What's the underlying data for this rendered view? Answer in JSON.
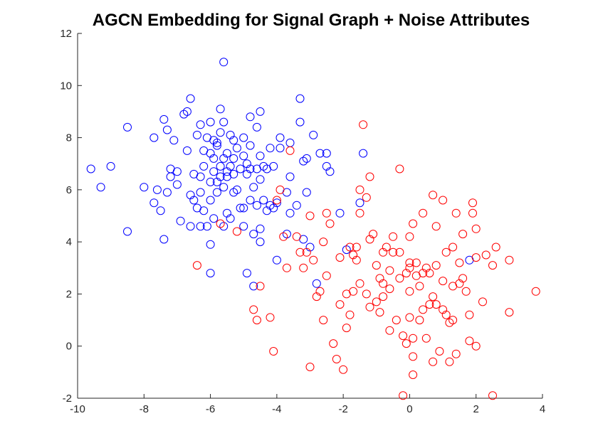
{
  "chart_data": {
    "type": "scatter",
    "title": "AGCN Embedding for Signal Graph + Noise Attributes",
    "xlabel": "",
    "ylabel": "",
    "xlim": [
      -10,
      4
    ],
    "ylim": [
      -2,
      12
    ],
    "xticks": [
      -10,
      -8,
      -6,
      -4,
      -2,
      0,
      2,
      4
    ],
    "yticks": [
      -2,
      0,
      2,
      4,
      6,
      8,
      10,
      12
    ],
    "grid": false,
    "legend": "none",
    "marker": "open-circle",
    "series": [
      {
        "color": "#0000ff",
        "points": [
          [
            -9.6,
            6.8
          ],
          [
            -9.3,
            6.1
          ],
          [
            -9.0,
            6.9
          ],
          [
            -8.5,
            8.4
          ],
          [
            -8.5,
            4.4
          ],
          [
            -8.0,
            6.1
          ],
          [
            -7.7,
            5.5
          ],
          [
            -7.7,
            8.0
          ],
          [
            -7.6,
            6.0
          ],
          [
            -7.5,
            5.2
          ],
          [
            -7.4,
            8.7
          ],
          [
            -7.4,
            4.1
          ],
          [
            -7.3,
            5.9
          ],
          [
            -7.3,
            8.3
          ],
          [
            -7.2,
            6.5
          ],
          [
            -7.2,
            6.8
          ],
          [
            -7.1,
            7.9
          ],
          [
            -7.0,
            6.2
          ],
          [
            -7.0,
            6.7
          ],
          [
            -6.9,
            4.8
          ],
          [
            -6.8,
            8.9
          ],
          [
            -6.7,
            9.0
          ],
          [
            -6.7,
            7.5
          ],
          [
            -6.6,
            5.8
          ],
          [
            -6.6,
            4.6
          ],
          [
            -6.6,
            9.5
          ],
          [
            -6.5,
            6.6
          ],
          [
            -6.5,
            5.6
          ],
          [
            -6.4,
            8.1
          ],
          [
            -6.4,
            5.3
          ],
          [
            -6.3,
            8.5
          ],
          [
            -6.3,
            6.5
          ],
          [
            -6.3,
            4.6
          ],
          [
            -6.3,
            5.9
          ],
          [
            -6.2,
            6.9
          ],
          [
            -6.2,
            5.2
          ],
          [
            -6.2,
            7.5
          ],
          [
            -6.1,
            8.0
          ],
          [
            -6.1,
            4.6
          ],
          [
            -6.0,
            7.4
          ],
          [
            -6.0,
            6.3
          ],
          [
            -6.0,
            5.6
          ],
          [
            -6.0,
            8.6
          ],
          [
            -6.0,
            3.9
          ],
          [
            -6.0,
            2.8
          ],
          [
            -5.9,
            6.7
          ],
          [
            -5.9,
            7.2
          ],
          [
            -5.9,
            4.9
          ],
          [
            -5.9,
            7.9
          ],
          [
            -5.8,
            6.3
          ],
          [
            -5.8,
            5.9
          ],
          [
            -5.8,
            7.7
          ],
          [
            -5.8,
            7.8
          ],
          [
            -5.7,
            6.5
          ],
          [
            -5.7,
            9.1
          ],
          [
            -5.7,
            8.2
          ],
          [
            -5.7,
            6.9
          ],
          [
            -5.6,
            8.6
          ],
          [
            -5.6,
            7.2
          ],
          [
            -5.6,
            6.1
          ],
          [
            -5.6,
            4.6
          ],
          [
            -5.6,
            10.9
          ],
          [
            -5.5,
            7.4
          ],
          [
            -5.5,
            6.5
          ],
          [
            -5.5,
            5.1
          ],
          [
            -5.5,
            6.7
          ],
          [
            -5.4,
            8.1
          ],
          [
            -5.4,
            6.9
          ],
          [
            -5.4,
            4.9
          ],
          [
            -5.3,
            7.2
          ],
          [
            -5.3,
            5.9
          ],
          [
            -5.3,
            6.6
          ],
          [
            -5.3,
            7.9
          ],
          [
            -5.2,
            6.0
          ],
          [
            -5.2,
            7.6
          ],
          [
            -5.1,
            5.3
          ],
          [
            -5.1,
            6.8
          ],
          [
            -5.0,
            7.3
          ],
          [
            -5.0,
            4.6
          ],
          [
            -5.0,
            5.3
          ],
          [
            -5.0,
            8.0
          ],
          [
            -4.9,
            7.0
          ],
          [
            -4.9,
            6.6
          ],
          [
            -4.9,
            2.8
          ],
          [
            -4.8,
            6.8
          ],
          [
            -4.8,
            5.6
          ],
          [
            -4.8,
            7.7
          ],
          [
            -4.8,
            8.8
          ],
          [
            -4.7,
            6.1
          ],
          [
            -4.7,
            4.3
          ],
          [
            -4.7,
            2.3
          ],
          [
            -4.6,
            6.8
          ],
          [
            -4.6,
            5.4
          ],
          [
            -4.6,
            8.4
          ],
          [
            -4.5,
            4.5
          ],
          [
            -4.5,
            7.3
          ],
          [
            -4.5,
            9.0
          ],
          [
            -4.5,
            6.4
          ],
          [
            -4.5,
            4.0
          ],
          [
            -4.4,
            6.9
          ],
          [
            -4.4,
            5.6
          ],
          [
            -4.3,
            5.2
          ],
          [
            -4.3,
            6.8
          ],
          [
            -4.2,
            5.4
          ],
          [
            -4.2,
            7.6
          ],
          [
            -4.1,
            5.3
          ],
          [
            -4.1,
            6.9
          ],
          [
            -4.0,
            5.5
          ],
          [
            -4.0,
            3.3
          ],
          [
            -3.9,
            8.0
          ],
          [
            -3.9,
            7.6
          ],
          [
            -3.7,
            5.9
          ],
          [
            -3.7,
            4.3
          ],
          [
            -3.6,
            7.8
          ],
          [
            -3.6,
            5.1
          ],
          [
            -3.6,
            6.5
          ],
          [
            -3.4,
            5.4
          ],
          [
            -3.3,
            9.5
          ],
          [
            -3.3,
            8.6
          ],
          [
            -3.2,
            4.1
          ],
          [
            -3.2,
            7.1
          ],
          [
            -3.1,
            5.9
          ],
          [
            -3.1,
            7.2
          ],
          [
            -3.0,
            3.8
          ],
          [
            -2.9,
            8.1
          ],
          [
            -2.8,
            2.4
          ],
          [
            -2.7,
            7.4
          ],
          [
            -2.5,
            7.4
          ],
          [
            -2.5,
            6.9
          ],
          [
            -2.4,
            6.7
          ],
          [
            -2.1,
            5.1
          ],
          [
            -1.9,
            3.7
          ],
          [
            -1.5,
            5.5
          ],
          [
            -1.4,
            7.4
          ],
          [
            1.8,
            3.3
          ]
        ]
      },
      {
        "color": "#ff0000",
        "points": [
          [
            -6.4,
            3.1
          ],
          [
            -5.7,
            4.7
          ],
          [
            -5.2,
            4.4
          ],
          [
            -4.7,
            1.4
          ],
          [
            -4.6,
            1.0
          ],
          [
            -4.5,
            2.3
          ],
          [
            -4.2,
            1.1
          ],
          [
            -4.1,
            -0.2
          ],
          [
            -4.0,
            5.6
          ],
          [
            -3.9,
            6.0
          ],
          [
            -3.8,
            4.2
          ],
          [
            -3.7,
            3.0
          ],
          [
            -3.6,
            7.5
          ],
          [
            -3.4,
            4.2
          ],
          [
            -3.3,
            3.6
          ],
          [
            -3.2,
            3.0
          ],
          [
            -3.1,
            3.6
          ],
          [
            -3.0,
            5.0
          ],
          [
            -3.0,
            -0.8
          ],
          [
            -2.9,
            3.3
          ],
          [
            -2.8,
            1.9
          ],
          [
            -2.7,
            2.1
          ],
          [
            -2.6,
            4.0
          ],
          [
            -2.6,
            1.0
          ],
          [
            -2.5,
            5.1
          ],
          [
            -2.5,
            2.7
          ],
          [
            -2.4,
            4.7
          ],
          [
            -2.3,
            0.1
          ],
          [
            -2.2,
            -0.5
          ],
          [
            -2.1,
            1.6
          ],
          [
            -2.1,
            3.4
          ],
          [
            -2.0,
            -0.9
          ],
          [
            -1.9,
            0.7
          ],
          [
            -1.9,
            2.0
          ],
          [
            -1.8,
            3.8
          ],
          [
            -1.8,
            1.2
          ],
          [
            -1.7,
            2.1
          ],
          [
            -1.7,
            3.5
          ],
          [
            -1.6,
            3.3
          ],
          [
            -1.6,
            3.8
          ],
          [
            -1.5,
            5.1
          ],
          [
            -1.5,
            2.4
          ],
          [
            -1.5,
            6.0
          ],
          [
            -1.4,
            8.5
          ],
          [
            -1.3,
            2.0
          ],
          [
            -1.3,
            5.7
          ],
          [
            -1.2,
            4.1
          ],
          [
            -1.2,
            1.5
          ],
          [
            -1.2,
            6.5
          ],
          [
            -1.1,
            4.3
          ],
          [
            -1.0,
            3.1
          ],
          [
            -1.0,
            1.7
          ],
          [
            -0.9,
            2.6
          ],
          [
            -0.9,
            1.3
          ],
          [
            -0.8,
            3.6
          ],
          [
            -0.8,
            2.4
          ],
          [
            -0.8,
            1.9
          ],
          [
            -0.7,
            3.8
          ],
          [
            -0.6,
            2.9
          ],
          [
            -0.6,
            0.6
          ],
          [
            -0.6,
            2.2
          ],
          [
            -0.5,
            4.2
          ],
          [
            -0.5,
            3.6
          ],
          [
            -0.4,
            1.0
          ],
          [
            -0.3,
            6.8
          ],
          [
            -0.3,
            2.6
          ],
          [
            -0.3,
            3.6
          ],
          [
            -0.2,
            0.4
          ],
          [
            -0.2,
            -1.9
          ],
          [
            -0.1,
            0.1
          ],
          [
            -0.1,
            2.8
          ],
          [
            0.0,
            4.2
          ],
          [
            0.0,
            3.2
          ],
          [
            0.0,
            3.0
          ],
          [
            0.0,
            2.1
          ],
          [
            0.0,
            1.1
          ],
          [
            0.1,
            0.3
          ],
          [
            0.1,
            -0.4
          ],
          [
            0.1,
            -1.1
          ],
          [
            0.1,
            4.7
          ],
          [
            0.2,
            3.2
          ],
          [
            0.2,
            2.7
          ],
          [
            0.3,
            1.0
          ],
          [
            0.3,
            2.3
          ],
          [
            0.4,
            5.1
          ],
          [
            0.4,
            2.8
          ],
          [
            0.5,
            3.0
          ],
          [
            0.5,
            0.3
          ],
          [
            0.6,
            1.6
          ],
          [
            0.6,
            2.8
          ],
          [
            0.7,
            5.8
          ],
          [
            0.7,
            1.9
          ],
          [
            0.7,
            -0.6
          ],
          [
            0.8,
            4.6
          ],
          [
            0.8,
            3.1
          ],
          [
            0.8,
            1.6
          ],
          [
            0.9,
            -0.2
          ],
          [
            1.0,
            5.6
          ],
          [
            1.0,
            2.5
          ],
          [
            1.0,
            1.4
          ],
          [
            1.1,
            3.6
          ],
          [
            1.1,
            1.2
          ],
          [
            1.2,
            0.9
          ],
          [
            1.2,
            -0.6
          ],
          [
            1.3,
            2.3
          ],
          [
            1.3,
            3.8
          ],
          [
            1.3,
            1.0
          ],
          [
            1.4,
            5.1
          ],
          [
            1.4,
            -0.3
          ],
          [
            1.5,
            3.2
          ],
          [
            1.5,
            2.4
          ],
          [
            1.6,
            2.6
          ],
          [
            1.6,
            4.3
          ],
          [
            1.7,
            2.1
          ],
          [
            1.8,
            1.2
          ],
          [
            1.8,
            0.2
          ],
          [
            1.9,
            5.5
          ],
          [
            1.9,
            5.1
          ],
          [
            2.0,
            4.5
          ],
          [
            2.0,
            3.4
          ],
          [
            2.0,
            0.0
          ],
          [
            2.2,
            1.7
          ],
          [
            2.3,
            3.5
          ],
          [
            2.5,
            3.1
          ],
          [
            2.5,
            -1.9
          ],
          [
            2.6,
            3.8
          ],
          [
            3.0,
            3.3
          ],
          [
            3.0,
            1.3
          ],
          [
            3.8,
            2.1
          ],
          [
            0.4,
            1.4
          ]
        ]
      }
    ]
  }
}
